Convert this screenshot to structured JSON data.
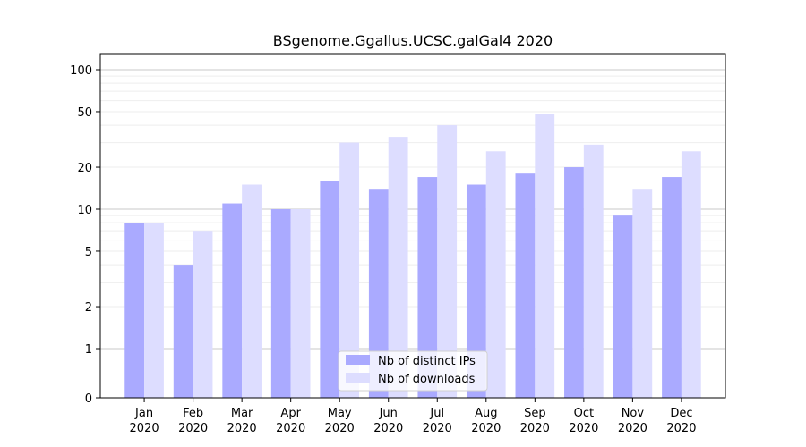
{
  "chart_data": {
    "type": "bar",
    "title": "BSgenome.Ggallus.UCSC.galGal4 2020",
    "xlabel": "",
    "ylabel": "",
    "y_scale": "symlog",
    "ylim": [
      0,
      120
    ],
    "y_ticks": [
      0,
      1,
      2,
      5,
      10,
      20,
      50,
      100
    ],
    "y_tick_labels": [
      "0",
      "1",
      "2",
      "5",
      "10",
      "20",
      "50",
      "100"
    ],
    "grid": true,
    "legend_position": "bottom-center",
    "categories": [
      [
        "Jan",
        "2020"
      ],
      [
        "Feb",
        "2020"
      ],
      [
        "Mar",
        "2020"
      ],
      [
        "Apr",
        "2020"
      ],
      [
        "May",
        "2020"
      ],
      [
        "Jun",
        "2020"
      ],
      [
        "Jul",
        "2020"
      ],
      [
        "Aug",
        "2020"
      ],
      [
        "Sep",
        "2020"
      ],
      [
        "Oct",
        "2020"
      ],
      [
        "Nov",
        "2020"
      ],
      [
        "Dec",
        "2020"
      ]
    ],
    "series": [
      {
        "name": "Nb of distinct IPs",
        "color": "#aaaaff",
        "values": [
          8,
          4,
          11,
          10,
          16,
          14,
          17,
          15,
          18,
          20,
          9,
          17
        ]
      },
      {
        "name": "Nb of downloads",
        "color": "#ddddff",
        "values": [
          8,
          7,
          15,
          10,
          30,
          33,
          40,
          26,
          48,
          29,
          14,
          26
        ]
      }
    ]
  }
}
